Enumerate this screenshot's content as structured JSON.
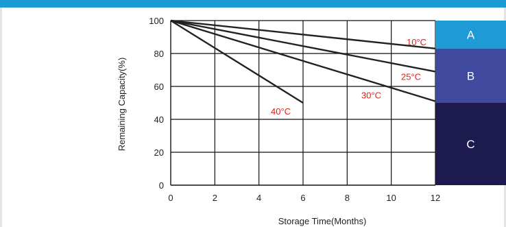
{
  "chart_data": {
    "type": "line",
    "xlabel": "Storage Time(Months)",
    "ylabel": "Remaining Capacity(%)",
    "xlim": [
      0,
      12
    ],
    "ylim": [
      0,
      100
    ],
    "x_ticks": [
      0,
      2,
      4,
      6,
      8,
      10,
      12
    ],
    "y_ticks": [
      0,
      20,
      40,
      60,
      80,
      100
    ],
    "grid": true,
    "series": [
      {
        "name": "10°C",
        "x": [
          0,
          12
        ],
        "values": [
          100,
          83
        ],
        "color": "#222222"
      },
      {
        "name": "25°C",
        "x": [
          0,
          12
        ],
        "values": [
          100,
          69
        ],
        "color": "#222222"
      },
      {
        "name": "30°C",
        "x": [
          0,
          12
        ],
        "values": [
          100,
          51
        ],
        "color": "#222222"
      },
      {
        "name": "40°C",
        "x": [
          0,
          6
        ],
        "values": [
          100,
          50
        ],
        "color": "#222222"
      }
    ],
    "series_label_color": "#e0201b",
    "zones": [
      {
        "label": "A",
        "from": 83,
        "to": 100,
        "color": "#1e9bd7"
      },
      {
        "label": "B",
        "from": 50,
        "to": 83,
        "color": "#3f4a9e"
      },
      {
        "label": "C",
        "from": 0,
        "to": 50,
        "color": "#1c1a4f"
      }
    ]
  }
}
